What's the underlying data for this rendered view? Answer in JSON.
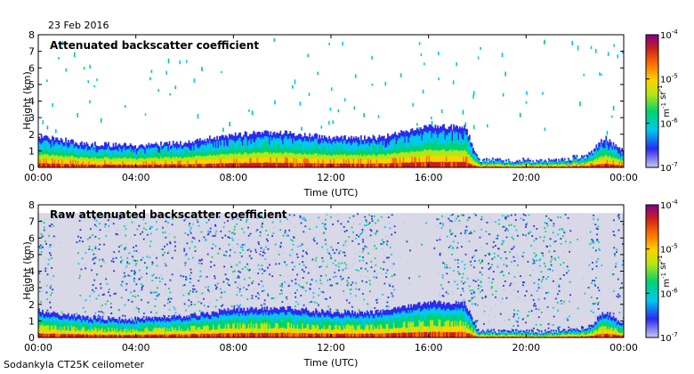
{
  "date_label": "23 Feb 2016",
  "footer_label": "Sodankyla CT25K ceilometer",
  "colors": {
    "background_sky": "#ffffff",
    "raw_background": "#d8d8e6",
    "noise_blue": "#1e3cd2",
    "colormap": [
      "#c8c8f0",
      "#2a2af0",
      "#00c8f0",
      "#00d26e",
      "#b4e614",
      "#ffd200",
      "#ff6e00",
      "#c81e1e",
      "#800090"
    ]
  },
  "chart_data": [
    {
      "type": "heatmap",
      "title": "Attenuated backscatter coefficient",
      "xlabel": "Time (UTC)",
      "ylabel": "Height (km)",
      "x_ticks": [
        "00:00",
        "04:00",
        "08:00",
        "12:00",
        "16:00",
        "20:00",
        "00:00"
      ],
      "y_ticks": [
        "0",
        "1",
        "2",
        "3",
        "4",
        "5",
        "6",
        "7",
        "8"
      ],
      "xlim_hours": [
        0,
        24
      ],
      "ylim_km": [
        0,
        8
      ],
      "colorbar": {
        "scale": "log",
        "min": 1e-07,
        "max": 0.0001,
        "tick_labels": [
          {
            "base": "10",
            "exp": "-7"
          },
          {
            "base": "10",
            "exp": "-6"
          },
          {
            "base": "10",
            "exp": "-5"
          },
          {
            "base": "10",
            "exp": "-4"
          }
        ],
        "unit_parts": [
          {
            "text": "m",
            "exp": "-1"
          },
          {
            "text": " sr",
            "exp": "-1"
          }
        ]
      },
      "boundary_layer_top_km": [
        {
          "hour": 0,
          "km": 1.9
        },
        {
          "hour": 2,
          "km": 1.4
        },
        {
          "hour": 4,
          "km": 1.3
        },
        {
          "hour": 6,
          "km": 1.5
        },
        {
          "hour": 8,
          "km": 2.0
        },
        {
          "hour": 10,
          "km": 2.1
        },
        {
          "hour": 12,
          "km": 1.8
        },
        {
          "hour": 14,
          "km": 1.8
        },
        {
          "hour": 16,
          "km": 2.5
        },
        {
          "hour": 17.5,
          "km": 2.4
        },
        {
          "hour": 18,
          "km": 0.45
        },
        {
          "hour": 21,
          "km": 0.4
        },
        {
          "hour": 22.5,
          "km": 0.7
        },
        {
          "hour": 23.2,
          "km": 1.8
        },
        {
          "hour": 24,
          "km": 0.9
        }
      ]
    },
    {
      "type": "heatmap",
      "title": "Raw attenuated backscatter coefficient",
      "xlabel": "Time (UTC)",
      "ylabel": "Height (km)",
      "x_ticks": [
        "00:00",
        "04:00",
        "08:00",
        "12:00",
        "16:00",
        "20:00",
        "00:00"
      ],
      "y_ticks": [
        "0",
        "1",
        "2",
        "3",
        "4",
        "5",
        "6",
        "7",
        "8"
      ],
      "xlim_hours": [
        0,
        24
      ],
      "ylim_km": [
        0,
        8
      ],
      "colorbar": {
        "scale": "log",
        "min": 1e-07,
        "max": 0.0001,
        "tick_labels": [
          {
            "base": "10",
            "exp": "-7"
          },
          {
            "base": "10",
            "exp": "-6"
          },
          {
            "base": "10",
            "exp": "-5"
          },
          {
            "base": "10",
            "exp": "-4"
          }
        ],
        "unit_parts": [
          {
            "text": "m",
            "exp": "-1"
          },
          {
            "text": " sr",
            "exp": "-1"
          }
        ]
      },
      "signal_top_km": 7.5,
      "low_noise_periods_hours": [
        [
          0.6,
          1.6
        ],
        [
          5.6,
          5.9
        ],
        [
          14.6,
          16.3
        ],
        [
          21.8,
          22.6
        ],
        [
          23.0,
          23.5
        ]
      ]
    }
  ]
}
